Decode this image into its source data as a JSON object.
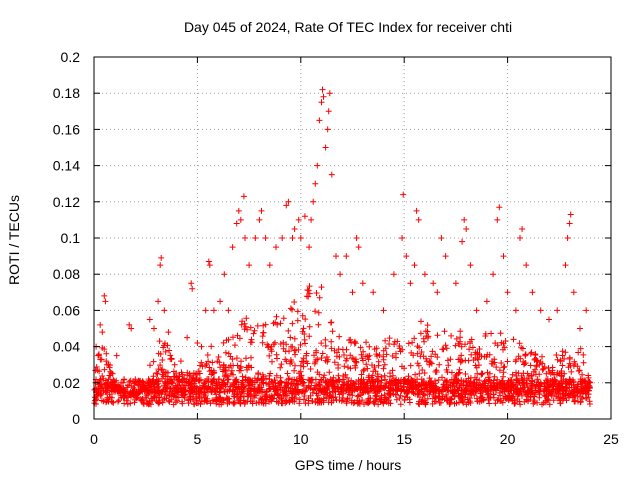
{
  "chart_data": {
    "type": "scatter",
    "title": "Day 045 of 2024, Rate Of TEC Index for receiver chti",
    "xlabel": "GPS time / hours",
    "ylabel": "ROTI / TECUs",
    "xlim": [
      0,
      25
    ],
    "ylim": [
      0,
      0.2
    ],
    "x_ticks": [
      0,
      5,
      10,
      15,
      20,
      25
    ],
    "x_tick_labels": [
      "0",
      "5",
      "10",
      "15",
      "20",
      "25"
    ],
    "y_ticks": [
      0,
      0.02,
      0.04,
      0.06,
      0.08,
      0.1,
      0.12,
      0.14,
      0.16,
      0.18,
      0.2
    ],
    "y_tick_labels": [
      "0",
      "0.02",
      "0.04",
      "0.06",
      "0.08",
      "0.1",
      "0.12",
      "0.14",
      "0.16",
      "0.18",
      "0.2"
    ],
    "grid": true,
    "marker": "+",
    "marker_color": "#ff0000",
    "series": [
      {
        "name": "ROTI",
        "points": [
          [
            0.1,
            0.04
          ],
          [
            0.2,
            0.035
          ],
          [
            0.3,
            0.052
          ],
          [
            0.4,
            0.048
          ],
          [
            0.5,
            0.068
          ],
          [
            0.55,
            0.065
          ],
          [
            0.7,
            0.03
          ],
          [
            0.9,
            0.025
          ],
          [
            1.1,
            0.035
          ],
          [
            1.4,
            0.02
          ],
          [
            1.7,
            0.052
          ],
          [
            1.8,
            0.05
          ],
          [
            2.1,
            0.012
          ],
          [
            2.4,
            0.02
          ],
          [
            2.7,
            0.055
          ],
          [
            2.9,
            0.05
          ],
          [
            3.1,
            0.065
          ],
          [
            3.2,
            0.085
          ],
          [
            3.25,
            0.089
          ],
          [
            3.4,
            0.06
          ],
          [
            3.6,
            0.048
          ],
          [
            3.9,
            0.03
          ],
          [
            4.2,
            0.032
          ],
          [
            4.5,
            0.045
          ],
          [
            4.7,
            0.075
          ],
          [
            4.75,
            0.072
          ],
          [
            5.0,
            0.042
          ],
          [
            5.2,
            0.04
          ],
          [
            5.4,
            0.06
          ],
          [
            5.55,
            0.087
          ],
          [
            5.6,
            0.085
          ],
          [
            5.8,
            0.06
          ],
          [
            6.1,
            0.065
          ],
          [
            6.3,
            0.08
          ],
          [
            6.5,
            0.06
          ],
          [
            6.7,
            0.095
          ],
          [
            6.9,
            0.108
          ],
          [
            7.0,
            0.115
          ],
          [
            7.1,
            0.11
          ],
          [
            7.25,
            0.123
          ],
          [
            7.3,
            0.1
          ],
          [
            7.5,
            0.085
          ],
          [
            7.8,
            0.1
          ],
          [
            8.0,
            0.11
          ],
          [
            8.1,
            0.115
          ],
          [
            8.3,
            0.1
          ],
          [
            8.5,
            0.085
          ],
          [
            8.8,
            0.095
          ],
          [
            9.1,
            0.1
          ],
          [
            9.3,
            0.118
          ],
          [
            9.4,
            0.12
          ],
          [
            9.6,
            0.1
          ],
          [
            9.7,
            0.105
          ],
          [
            9.9,
            0.11
          ],
          [
            10.0,
            0.1
          ],
          [
            10.2,
            0.112
          ],
          [
            10.4,
            0.095
          ],
          [
            10.5,
            0.11
          ],
          [
            10.6,
            0.12
          ],
          [
            10.7,
            0.13
          ],
          [
            10.8,
            0.14
          ],
          [
            10.9,
            0.165
          ],
          [
            11.0,
            0.175
          ],
          [
            11.05,
            0.182
          ],
          [
            11.1,
            0.178
          ],
          [
            11.2,
            0.15
          ],
          [
            11.3,
            0.16
          ],
          [
            11.35,
            0.17
          ],
          [
            11.4,
            0.18
          ],
          [
            11.5,
            0.135
          ],
          [
            11.7,
            0.09
          ],
          [
            11.9,
            0.08
          ],
          [
            12.2,
            0.09
          ],
          [
            12.5,
            0.07
          ],
          [
            12.7,
            0.1
          ],
          [
            12.8,
            0.095
          ],
          [
            13.0,
            0.075
          ],
          [
            13.5,
            0.07
          ],
          [
            14.0,
            0.06
          ],
          [
            14.5,
            0.08
          ],
          [
            14.9,
            0.1
          ],
          [
            14.95,
            0.124
          ],
          [
            15.1,
            0.09
          ],
          [
            15.3,
            0.075
          ],
          [
            15.5,
            0.085
          ],
          [
            15.6,
            0.115
          ],
          [
            15.7,
            0.11
          ],
          [
            16.0,
            0.08
          ],
          [
            16.4,
            0.075
          ],
          [
            16.6,
            0.07
          ],
          [
            16.8,
            0.1
          ],
          [
            17.0,
            0.09
          ],
          [
            17.5,
            0.075
          ],
          [
            17.8,
            0.098
          ],
          [
            17.9,
            0.11
          ],
          [
            18.0,
            0.105
          ],
          [
            18.2,
            0.085
          ],
          [
            18.5,
            0.06
          ],
          [
            19.0,
            0.065
          ],
          [
            19.3,
            0.08
          ],
          [
            19.5,
            0.11
          ],
          [
            19.6,
            0.117
          ],
          [
            19.8,
            0.09
          ],
          [
            20.0,
            0.07
          ],
          [
            20.4,
            0.06
          ],
          [
            20.6,
            0.1
          ],
          [
            20.7,
            0.105
          ],
          [
            20.9,
            0.085
          ],
          [
            21.2,
            0.07
          ],
          [
            21.6,
            0.06
          ],
          [
            22.0,
            0.055
          ],
          [
            22.4,
            0.06
          ],
          [
            22.8,
            0.085
          ],
          [
            22.9,
            0.1
          ],
          [
            23.0,
            0.108
          ],
          [
            23.05,
            0.113
          ],
          [
            23.2,
            0.07
          ],
          [
            23.5,
            0.05
          ],
          [
            23.8,
            0.06
          ],
          [
            24.0,
            0.02
          ]
        ],
        "baseline_mean": 0.015,
        "baseline_jitter": 0.007,
        "density_profile": [
          [
            0.0,
            0.03
          ],
          [
            0.5,
            0.04
          ],
          [
            1.0,
            0.02
          ],
          [
            1.5,
            0.015
          ],
          [
            2.0,
            0.012
          ],
          [
            2.5,
            0.02
          ],
          [
            3.0,
            0.045
          ],
          [
            3.5,
            0.04
          ],
          [
            4.0,
            0.025
          ],
          [
            4.5,
            0.025
          ],
          [
            5.0,
            0.025
          ],
          [
            5.5,
            0.04
          ],
          [
            6.0,
            0.035
          ],
          [
            6.5,
            0.045
          ],
          [
            7.0,
            0.06
          ],
          [
            7.5,
            0.05
          ],
          [
            8.0,
            0.055
          ],
          [
            8.5,
            0.05
          ],
          [
            9.0,
            0.055
          ],
          [
            9.5,
            0.06
          ],
          [
            10.0,
            0.07
          ],
          [
            10.5,
            0.075
          ],
          [
            11.0,
            0.07
          ],
          [
            11.5,
            0.05
          ],
          [
            12.0,
            0.04
          ],
          [
            12.5,
            0.045
          ],
          [
            13.0,
            0.04
          ],
          [
            13.5,
            0.04
          ],
          [
            14.0,
            0.04
          ],
          [
            14.5,
            0.045
          ],
          [
            15.0,
            0.05
          ],
          [
            15.5,
            0.055
          ],
          [
            16.0,
            0.05
          ],
          [
            16.5,
            0.045
          ],
          [
            17.0,
            0.05
          ],
          [
            17.5,
            0.045
          ],
          [
            18.0,
            0.05
          ],
          [
            18.5,
            0.04
          ],
          [
            19.0,
            0.045
          ],
          [
            19.5,
            0.05
          ],
          [
            20.0,
            0.04
          ],
          [
            20.5,
            0.045
          ],
          [
            21.0,
            0.035
          ],
          [
            21.5,
            0.035
          ],
          [
            22.0,
            0.03
          ],
          [
            22.5,
            0.035
          ],
          [
            23.0,
            0.045
          ],
          [
            23.5,
            0.04
          ],
          [
            24.0,
            0.02
          ]
        ]
      }
    ]
  }
}
